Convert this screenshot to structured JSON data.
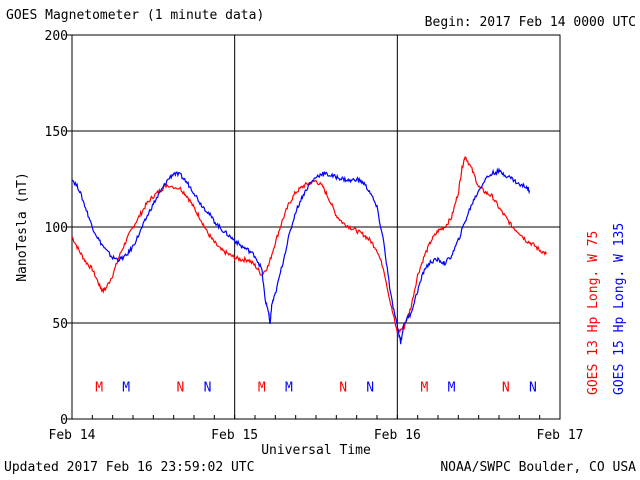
{
  "header": {
    "title": "GOES Magnetometer (1 minute data)",
    "begin": "Begin:  2017 Feb 14 0000 UTC"
  },
  "footer": {
    "updated": "Updated 2017 Feb 16 23:59:02 UTC",
    "credit": "NOAA/SWPC Boulder, CO USA"
  },
  "colors": {
    "goes13": "#ff0000",
    "goes15": "#0000ff"
  },
  "chart_data": {
    "type": "line",
    "xlabel": "Universal Time",
    "ylabel": "NanoTesla (nT)",
    "ylim": [
      0,
      200
    ],
    "xlim_hours": [
      0,
      72
    ],
    "yticks": [
      0,
      50,
      100,
      150,
      200
    ],
    "xticks": [
      {
        "hour": 0,
        "label": "Feb 14"
      },
      {
        "hour": 24,
        "label": "Feb 15"
      },
      {
        "hour": 48,
        "label": "Feb 16"
      },
      {
        "hour": 72,
        "label": "Feb 17"
      }
    ],
    "grid": true,
    "series": [
      {
        "name": "GOES 13 Hp  Long. W 75",
        "color": "#ff0000",
        "points": [
          [
            0,
            95
          ],
          [
            1,
            88
          ],
          [
            2,
            82
          ],
          [
            3,
            78
          ],
          [
            4,
            70
          ],
          [
            4.5,
            67
          ],
          [
            5,
            68
          ],
          [
            6,
            75
          ],
          [
            7,
            85
          ],
          [
            8,
            93
          ],
          [
            9,
            100
          ],
          [
            10,
            106
          ],
          [
            11,
            112
          ],
          [
            12,
            116
          ],
          [
            13,
            119
          ],
          [
            14,
            122
          ],
          [
            16,
            120
          ],
          [
            17,
            116
          ],
          [
            18,
            110
          ],
          [
            19,
            104
          ],
          [
            20,
            97
          ],
          [
            21,
            92
          ],
          [
            22,
            88
          ],
          [
            23,
            86
          ],
          [
            24,
            84
          ],
          [
            25,
            83
          ],
          [
            26,
            83
          ],
          [
            27,
            80
          ],
          [
            28,
            75
          ],
          [
            29,
            80
          ],
          [
            30,
            92
          ],
          [
            31,
            103
          ],
          [
            32,
            112
          ],
          [
            33,
            118
          ],
          [
            34,
            121
          ],
          [
            35,
            123
          ],
          [
            36,
            124
          ],
          [
            37,
            121
          ],
          [
            38,
            114
          ],
          [
            39,
            106
          ],
          [
            40,
            102
          ],
          [
            41,
            100
          ],
          [
            42,
            98
          ],
          [
            43,
            96
          ],
          [
            44,
            93
          ],
          [
            45,
            88
          ],
          [
            46,
            78
          ],
          [
            47,
            60
          ],
          [
            48,
            45
          ],
          [
            49,
            48
          ],
          [
            50,
            58
          ],
          [
            51,
            75
          ],
          [
            52,
            85
          ],
          [
            53,
            93
          ],
          [
            54,
            98
          ],
          [
            55,
            100
          ],
          [
            56,
            105
          ],
          [
            57,
            118
          ],
          [
            57.5,
            130
          ],
          [
            58,
            137
          ],
          [
            59,
            130
          ],
          [
            60,
            121
          ],
          [
            61,
            118
          ],
          [
            62,
            116
          ],
          [
            63,
            110
          ],
          [
            64,
            105
          ],
          [
            65,
            100
          ],
          [
            66,
            97
          ],
          [
            67,
            93
          ],
          [
            68,
            91
          ],
          [
            69,
            88
          ],
          [
            70,
            86
          ]
        ]
      },
      {
        "name": "GOES 15 Hp  Long. W 135",
        "color": "#0000ff",
        "points": [
          [
            0,
            125
          ],
          [
            1,
            120
          ],
          [
            2,
            110
          ],
          [
            3,
            100
          ],
          [
            4,
            93
          ],
          [
            5,
            88
          ],
          [
            6,
            84
          ],
          [
            7,
            83
          ],
          [
            8,
            85
          ],
          [
            9,
            90
          ],
          [
            10,
            97
          ],
          [
            11,
            105
          ],
          [
            12,
            112
          ],
          [
            13,
            118
          ],
          [
            14,
            124
          ],
          [
            15,
            128
          ],
          [
            16,
            127
          ],
          [
            17,
            123
          ],
          [
            18,
            118
          ],
          [
            19,
            112
          ],
          [
            20,
            108
          ],
          [
            21,
            103
          ],
          [
            22,
            99
          ],
          [
            23,
            96
          ],
          [
            24,
            93
          ],
          [
            25,
            90
          ],
          [
            26,
            88
          ],
          [
            27,
            85
          ],
          [
            28,
            78
          ],
          [
            28.5,
            62
          ],
          [
            29,
            56
          ],
          [
            29.2,
            49
          ],
          [
            29.5,
            60
          ],
          [
            30,
            65
          ],
          [
            31,
            80
          ],
          [
            32,
            95
          ],
          [
            33,
            108
          ],
          [
            34,
            116
          ],
          [
            35,
            122
          ],
          [
            36,
            126
          ],
          [
            37,
            128
          ],
          [
            38,
            127
          ],
          [
            39,
            126
          ],
          [
            40,
            125
          ],
          [
            41,
            124
          ],
          [
            42,
            125
          ],
          [
            43,
            123
          ],
          [
            44,
            118
          ],
          [
            45,
            110
          ],
          [
            46,
            92
          ],
          [
            47,
            65
          ],
          [
            48,
            48
          ],
          [
            48.5,
            40
          ],
          [
            49,
            50
          ],
          [
            50,
            55
          ],
          [
            51,
            67
          ],
          [
            52,
            78
          ],
          [
            53,
            82
          ],
          [
            54,
            83
          ],
          [
            55,
            81
          ],
          [
            56,
            85
          ],
          [
            57,
            93
          ],
          [
            58,
            103
          ],
          [
            59,
            112
          ],
          [
            60,
            119
          ],
          [
            61,
            125
          ],
          [
            62,
            128
          ],
          [
            63,
            129
          ],
          [
            64,
            127
          ],
          [
            65,
            125
          ],
          [
            66,
            122
          ],
          [
            67,
            121
          ],
          [
            67.5,
            119
          ]
        ]
      }
    ],
    "annotations": [
      {
        "hour": 4,
        "label": "M",
        "color": "#ff0000"
      },
      {
        "hour": 28,
        "label": "M",
        "color": "#ff0000"
      },
      {
        "hour": 52,
        "label": "M",
        "color": "#ff0000"
      },
      {
        "hour": 16,
        "label": "N",
        "color": "#ff0000"
      },
      {
        "hour": 40,
        "label": "N",
        "color": "#ff0000"
      },
      {
        "hour": 64,
        "label": "N",
        "color": "#ff0000"
      },
      {
        "hour": 8,
        "label": "M",
        "color": "#0000ff"
      },
      {
        "hour": 32,
        "label": "M",
        "color": "#0000ff"
      },
      {
        "hour": 56,
        "label": "M",
        "color": "#0000ff"
      },
      {
        "hour": 20,
        "label": "N",
        "color": "#0000ff"
      },
      {
        "hour": 44,
        "label": "N",
        "color": "#0000ff"
      },
      {
        "hour": 68,
        "label": "N",
        "color": "#0000ff"
      }
    ],
    "annotation_level": 17
  }
}
